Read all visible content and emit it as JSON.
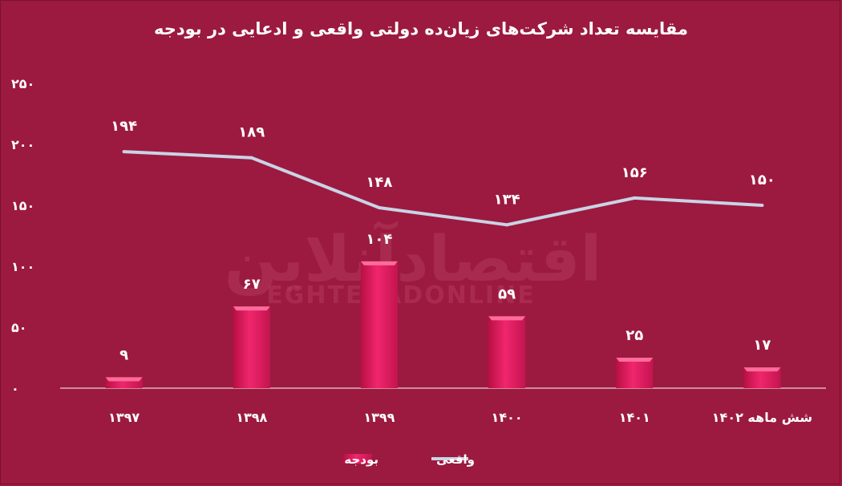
{
  "chart_data": {
    "type": "bar",
    "title": "مقایسه تعداد شرکت‌های زیان‌ده دولتی واقعی و ادعایی در بودجه",
    "categories": [
      "۱۳۹۷",
      "۱۳۹۸",
      "۱۳۹۹",
      "۱۴۰۰",
      "۱۴۰۱",
      "شش ماهه ۱۴۰۲"
    ],
    "series": [
      {
        "name": "بودجه",
        "type": "bar",
        "values": [
          9,
          67,
          104,
          59,
          25,
          17
        ],
        "value_labels": [
          "۹",
          "۶۷",
          "۱۰۴",
          "۵۹",
          "۲۵",
          "۱۷"
        ],
        "color": "#e8195f"
      },
      {
        "name": "واقعی",
        "type": "line",
        "values": [
          194,
          189,
          148,
          134,
          156,
          150
        ],
        "value_labels": [
          "۱۹۴",
          "۱۸۹",
          "۱۴۸",
          "۱۳۴",
          "۱۵۶",
          "۱۵۰"
        ],
        "color": "#c9d3e6"
      }
    ],
    "ylim": [
      0,
      250
    ],
    "yticks": [
      0,
      50,
      100,
      150,
      200,
      250
    ],
    "ytick_labels": [
      "۰",
      "۵۰",
      "۱۰۰",
      "۱۵۰",
      "۲۰۰",
      "۲۵۰"
    ],
    "xlabel": "",
    "ylabel": "",
    "grid": false,
    "legend_position": "bottom"
  },
  "watermark": {
    "text_fa": "اقتصادآنلاین",
    "text_en": "EGHTESADONLINE"
  },
  "colors": {
    "background": "#9c1a3f",
    "bar": "#e8195f",
    "line": "#c9d3e6",
    "axis": "#ffffff"
  }
}
